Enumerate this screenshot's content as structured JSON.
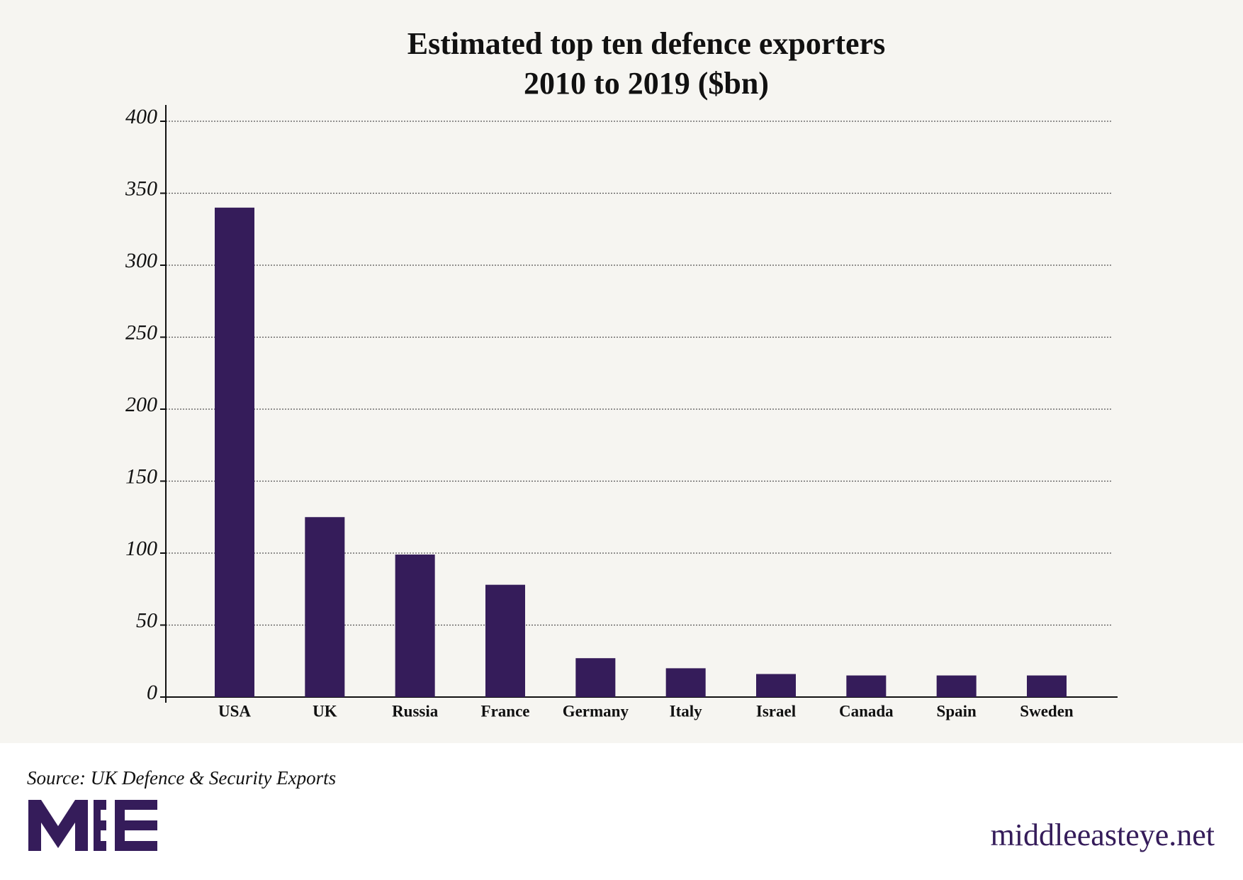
{
  "chart_data": {
    "type": "bar",
    "title": [
      "Estimated top ten defence exporters",
      "2010 to 2019 ($bn)"
    ],
    "categories": [
      "USA",
      "UK",
      "Russia",
      "France",
      "Germany",
      "Italy",
      "Israel",
      "Canada",
      "Spain",
      "Sweden"
    ],
    "values": [
      340,
      125,
      99,
      78,
      27,
      20,
      16,
      15,
      15,
      15
    ],
    "color": "#351c5a",
    "ylim": [
      0,
      400
    ],
    "yticks": [
      0,
      50,
      100,
      150,
      200,
      250,
      300,
      350,
      400
    ],
    "grid": true
  },
  "footer": {
    "source": "Source: UK Defence & Security Exports",
    "brand": "middleeasteye.net"
  }
}
